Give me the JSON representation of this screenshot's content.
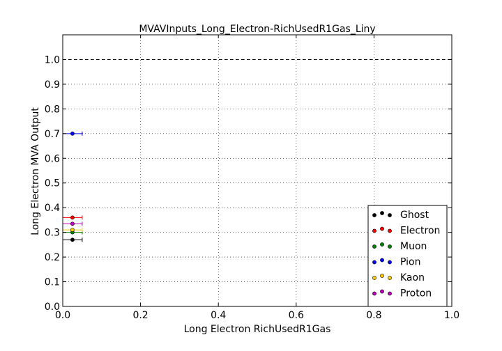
{
  "chart_data": {
    "type": "scatter",
    "title": "MVAVInputs_Long_Electron-RichUsedR1Gas_Liny",
    "xlabel": "Long Electron RichUsedR1Gas",
    "ylabel": "Long Electron MVA Output",
    "xlim": [
      0.0,
      1.0
    ],
    "ylim": [
      0.0,
      1.1
    ],
    "x_ticks": [
      "0.0",
      "0.2",
      "0.4",
      "0.6",
      "0.8",
      "1.0"
    ],
    "y_ticks": [
      "0.0",
      "0.1",
      "0.2",
      "0.3",
      "0.4",
      "0.5",
      "0.6",
      "0.7",
      "0.8",
      "0.9",
      "1.0"
    ],
    "grid": true,
    "reference_line_y": 1.0,
    "legend_position": "lower-right",
    "series": [
      {
        "name": "Ghost",
        "color": "#000000",
        "x": [
          0.025
        ],
        "y": [
          0.27
        ],
        "x_err": [
          0.025
        ]
      },
      {
        "name": "Electron",
        "color": "#ff0000",
        "x": [
          0.025
        ],
        "y": [
          0.36
        ],
        "x_err": [
          0.025
        ]
      },
      {
        "name": "Muon",
        "color": "#008000",
        "x": [
          0.025
        ],
        "y": [
          0.3
        ],
        "x_err": [
          0.025
        ]
      },
      {
        "name": "Pion",
        "color": "#0000ff",
        "x": [
          0.025
        ],
        "y": [
          0.7
        ],
        "x_err": [
          0.025
        ]
      },
      {
        "name": "Kaon",
        "color": "#ffcc00",
        "x": [
          0.025
        ],
        "y": [
          0.31
        ],
        "x_err": [
          0.025
        ]
      },
      {
        "name": "Proton",
        "color": "#bf00bf",
        "x": [
          0.025
        ],
        "y": [
          0.335
        ],
        "x_err": [
          0.025
        ]
      }
    ]
  }
}
